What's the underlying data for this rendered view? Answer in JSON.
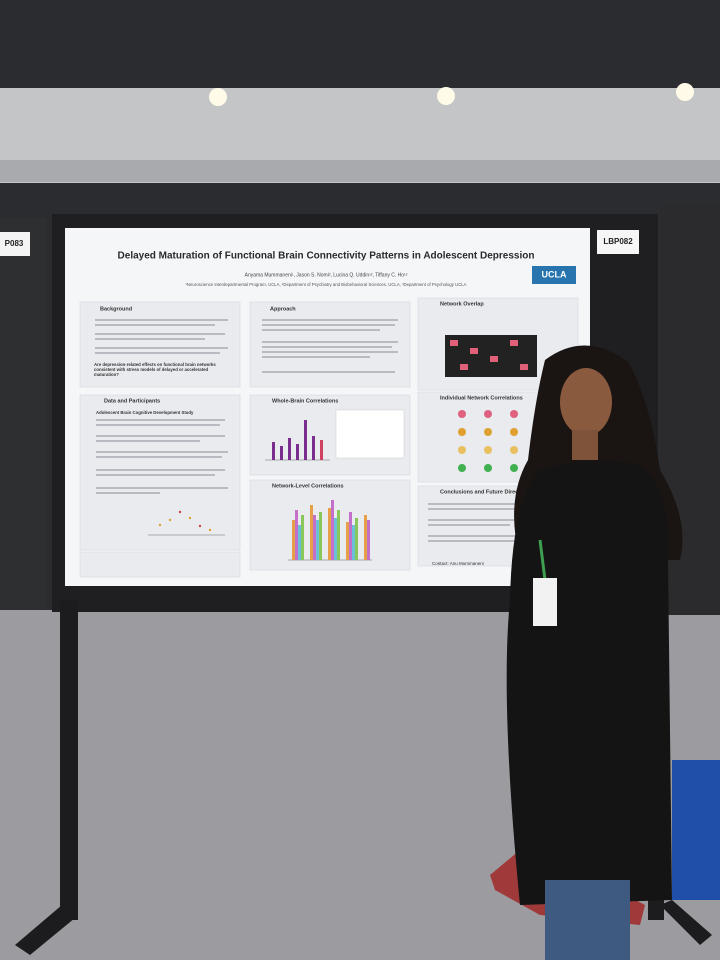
{
  "signs": {
    "left_board": "P083",
    "right_board": "LBP082"
  },
  "poster": {
    "title": "Delayed Maturation of Functional Brain Connectivity Patterns in Adolescent Depression",
    "logo": "UCLA",
    "authors": "Anyama Mummaneni¹, Jason S. Nomi², Lucina Q. Uddin¹², Tiffany C. Ho¹²",
    "affiliations": "¹Neuroscience Interdepartmental Program, UCLA, ²Department of Psychiatry and Biobehavioral Sciences, UCLA, ³Department of Psychology UCLA",
    "sections": [
      {
        "heading": "Background"
      },
      {
        "heading": "Approach"
      },
      {
        "heading": "Network Overlap"
      },
      {
        "heading": "Data and Participants"
      },
      {
        "heading": "Whole-Brain Correlations"
      },
      {
        "heading": "Individual Network Correlations"
      },
      {
        "heading": "Network-Level Correlations"
      },
      {
        "heading": "Conclusions and Future Directions"
      }
    ],
    "study": "Adolescent Brain Cognitive Development Study",
    "question": "Are depression-related effects on functional brain networks consistent with stress models of delayed or accelerated maturation?",
    "contact": "Contact: Anu Mummaneni"
  }
}
